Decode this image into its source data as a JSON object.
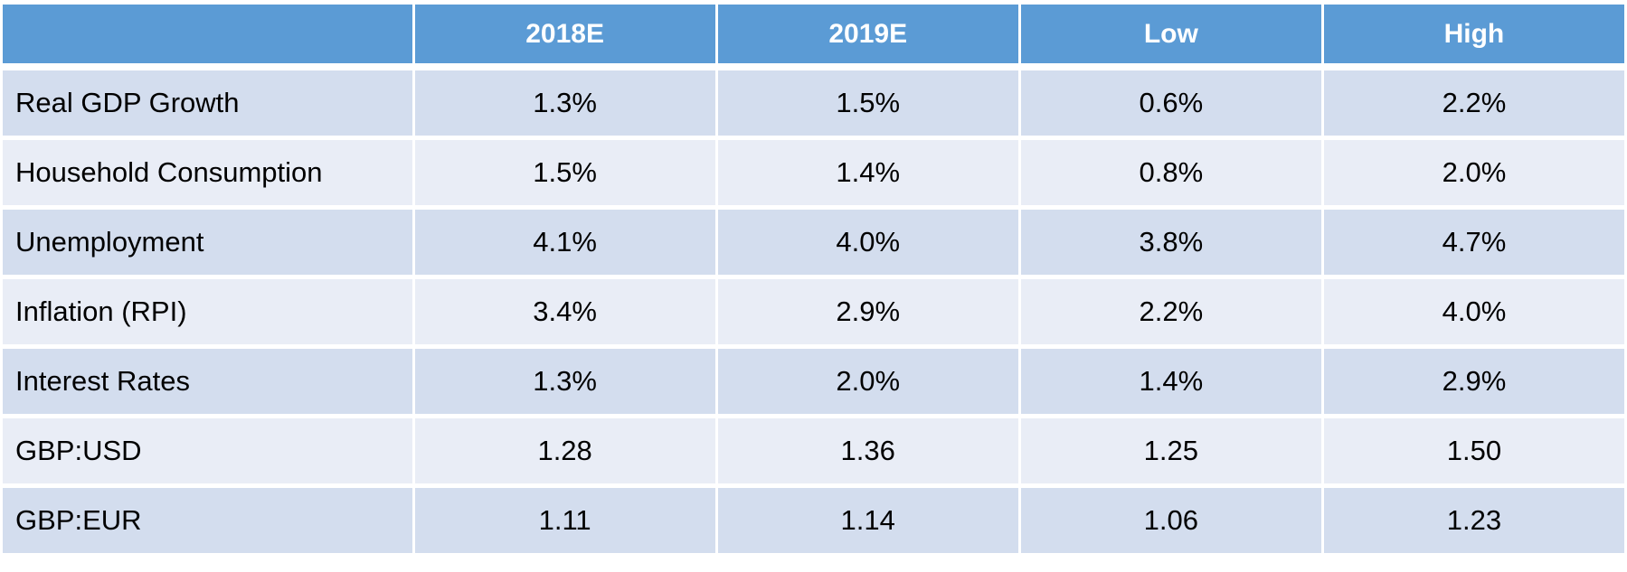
{
  "chart_data": {
    "type": "table",
    "columns": [
      "",
      "2018E",
      "2019E",
      "Low",
      "High"
    ],
    "rows": [
      {
        "label": "Real GDP Growth",
        "values": [
          "1.3%",
          "1.5%",
          "0.6%",
          "2.2%"
        ]
      },
      {
        "label": "Household Consumption",
        "values": [
          "1.5%",
          "1.4%",
          "0.8%",
          "2.0%"
        ]
      },
      {
        "label": "Unemployment",
        "values": [
          "4.1%",
          "4.0%",
          "3.8%",
          "4.7%"
        ]
      },
      {
        "label": "Inflation (RPI)",
        "values": [
          "3.4%",
          "2.9%",
          "2.2%",
          "4.0%"
        ]
      },
      {
        "label": "Interest Rates",
        "values": [
          "1.3%",
          "2.0%",
          "1.4%",
          "2.9%"
        ]
      },
      {
        "label": "GBP:USD",
        "values": [
          "1.28",
          "1.36",
          "1.25",
          "1.50"
        ]
      },
      {
        "label": "GBP:EUR",
        "values": [
          "1.11",
          "1.14",
          "1.06",
          "1.23"
        ]
      }
    ]
  },
  "colors": {
    "header_bg": "#5B9BD5",
    "header_text": "#FFFFFF",
    "band_odd": "#D3DDEE",
    "band_even": "#E9EDF6",
    "body_text": "#000000",
    "grid_gap": "#FFFFFF"
  }
}
